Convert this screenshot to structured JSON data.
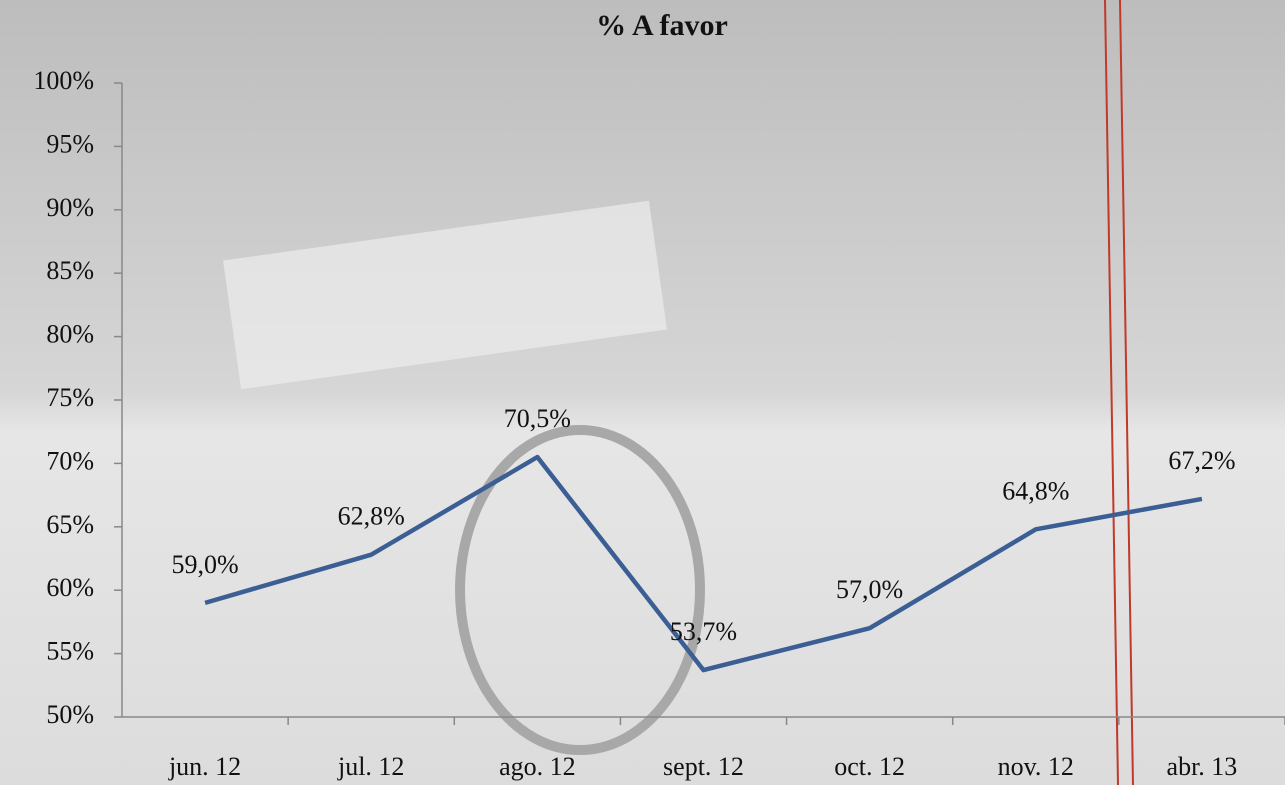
{
  "chart_data": {
    "type": "line",
    "title": "% A favor",
    "categories": [
      "jun. 12",
      "jul. 12",
      "ago. 12",
      "sept. 12",
      "oct. 12",
      "nov. 12",
      "abr. 13"
    ],
    "series": [
      {
        "name": "% A favor",
        "color": "#3b5f94",
        "values": [
          59.0,
          62.8,
          70.5,
          53.7,
          57.0,
          64.8,
          67.2
        ],
        "value_labels": [
          "59,0%",
          "62,8%",
          "70,5%",
          "53,7%",
          "57,0%",
          "64,8%",
          "67,2%"
        ]
      }
    ],
    "ylim": [
      50,
      100
    ],
    "yticks": [
      {
        "value": 50,
        "label": "50%"
      },
      {
        "value": 55,
        "label": "55%"
      },
      {
        "value": 60,
        "label": "60%"
      },
      {
        "value": 65,
        "label": "65%"
      },
      {
        "value": 70,
        "label": "70%"
      },
      {
        "value": 75,
        "label": "75%"
      },
      {
        "value": 80,
        "label": "80%"
      },
      {
        "value": 85,
        "label": "85%"
      },
      {
        "value": 90,
        "label": "90%"
      },
      {
        "value": 95,
        "label": "95%"
      },
      {
        "value": 100,
        "label": "100%"
      }
    ],
    "grid": false
  }
}
